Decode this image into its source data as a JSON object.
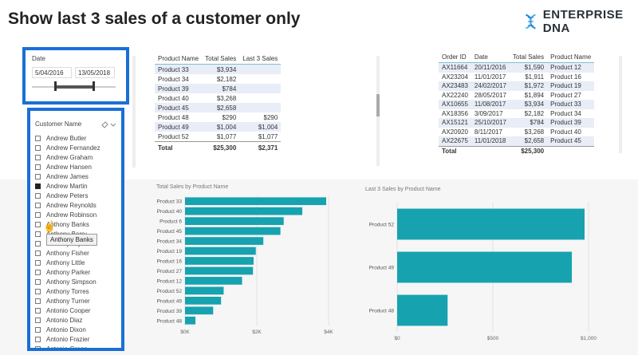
{
  "header": {
    "title": "Show last 3 sales of a customer only",
    "brand": "ENTERPRISE DNA"
  },
  "colors": {
    "accent": "#1a6fd6",
    "bar": "#17a2b0"
  },
  "date_slicer": {
    "label": "Date",
    "start": "5/04/2016",
    "end": "13/05/2018"
  },
  "customer_slicer": {
    "header": "Customer Name",
    "items": [
      {
        "name": "Andrew Butler",
        "checked": false
      },
      {
        "name": "Andrew Fernandez",
        "checked": false
      },
      {
        "name": "Andrew Graham",
        "checked": false
      },
      {
        "name": "Andrew Hansen",
        "checked": false
      },
      {
        "name": "Andrew James",
        "checked": false
      },
      {
        "name": "Andrew Martin",
        "checked": true
      },
      {
        "name": "Andrew Peters",
        "checked": false
      },
      {
        "name": "Andrew Reynolds",
        "checked": false
      },
      {
        "name": "Andrew Robinson",
        "checked": false
      },
      {
        "name": "Anthony Banks",
        "checked": false
      },
      {
        "name": "Anthony Berry",
        "checked": false
      },
      {
        "name": "Anthony Bryan",
        "checked": false
      },
      {
        "name": "Anthony Fisher",
        "checked": false
      },
      {
        "name": "Anthony Little",
        "checked": false
      },
      {
        "name": "Anthony Parker",
        "checked": false
      },
      {
        "name": "Anthony Simpson",
        "checked": false
      },
      {
        "name": "Anthony Torres",
        "checked": false
      },
      {
        "name": "Anthony Turner",
        "checked": false
      },
      {
        "name": "Antonio Cooper",
        "checked": false
      },
      {
        "name": "Antonio Diaz",
        "checked": false
      },
      {
        "name": "Antonio Dixon",
        "checked": false
      },
      {
        "name": "Antonio Frazier",
        "checked": false
      },
      {
        "name": "Antonio Green",
        "checked": false
      }
    ],
    "tooltip": "Anthony Banks"
  },
  "product_table": {
    "columns": [
      "Product Name",
      "Total Sales",
      "Last 3 Sales"
    ],
    "rows": [
      [
        "Product 33",
        "$3,934",
        ""
      ],
      [
        "Product 34",
        "$2,182",
        ""
      ],
      [
        "Product 39",
        "$784",
        ""
      ],
      [
        "Product 40",
        "$3,268",
        ""
      ],
      [
        "Product 45",
        "$2,658",
        ""
      ],
      [
        "Product 48",
        "$290",
        "$290"
      ],
      [
        "Product 49",
        "$1,004",
        "$1,004"
      ],
      [
        "Product 52",
        "$1,077",
        "$1,077"
      ]
    ],
    "total": [
      "Total",
      "$25,300",
      "$2,371"
    ]
  },
  "order_table": {
    "columns": [
      "Order ID",
      "Date",
      "Total Sales",
      "Product Name"
    ],
    "rows": [
      [
        "AX11664",
        "20/11/2016",
        "$1,590",
        "Product 12"
      ],
      [
        "AX23204",
        "11/01/2017",
        "$1,911",
        "Product 16"
      ],
      [
        "AX23483",
        "24/02/2017",
        "$1,972",
        "Product 19"
      ],
      [
        "AX22240",
        "28/05/2017",
        "$1,894",
        "Product 27"
      ],
      [
        "AX10655",
        "11/08/2017",
        "$3,934",
        "Product 33"
      ],
      [
        "AX18356",
        "3/09/2017",
        "$2,182",
        "Product 34"
      ],
      [
        "AX15121",
        "25/10/2017",
        "$784",
        "Product 39"
      ],
      [
        "AX20920",
        "8/11/2017",
        "$3,268",
        "Product 40"
      ],
      [
        "AX22675",
        "11/01/2018",
        "$2,658",
        "Product 45"
      ]
    ],
    "total": [
      "Total",
      "",
      "$25,300",
      ""
    ]
  },
  "chart_data": [
    {
      "type": "bar",
      "orientation": "horizontal",
      "title": "Total Sales by Product Name",
      "categories": [
        "Product 33",
        "Product 40",
        "Product 6",
        "Product 45",
        "Product 34",
        "Product 19",
        "Product 16",
        "Product 27",
        "Product 12",
        "Product 52",
        "Product 49",
        "Product 39",
        "Product 48"
      ],
      "values": [
        3934,
        3268,
        2750,
        2658,
        2182,
        1972,
        1911,
        1894,
        1590,
        1077,
        1004,
        784,
        290
      ],
      "xlim": [
        0,
        4000
      ],
      "xticks": [
        "$0K",
        "$2K",
        "$4K"
      ]
    },
    {
      "type": "bar",
      "orientation": "horizontal",
      "title": "Last 3 Sales by Product Name",
      "categories": [
        "Product 52",
        "Product 49",
        "Product 48"
      ],
      "values": [
        1077,
        1004,
        290
      ],
      "xlim": [
        0,
        1100
      ],
      "xticks": [
        "$0",
        "$500",
        "$1,000"
      ]
    }
  ]
}
